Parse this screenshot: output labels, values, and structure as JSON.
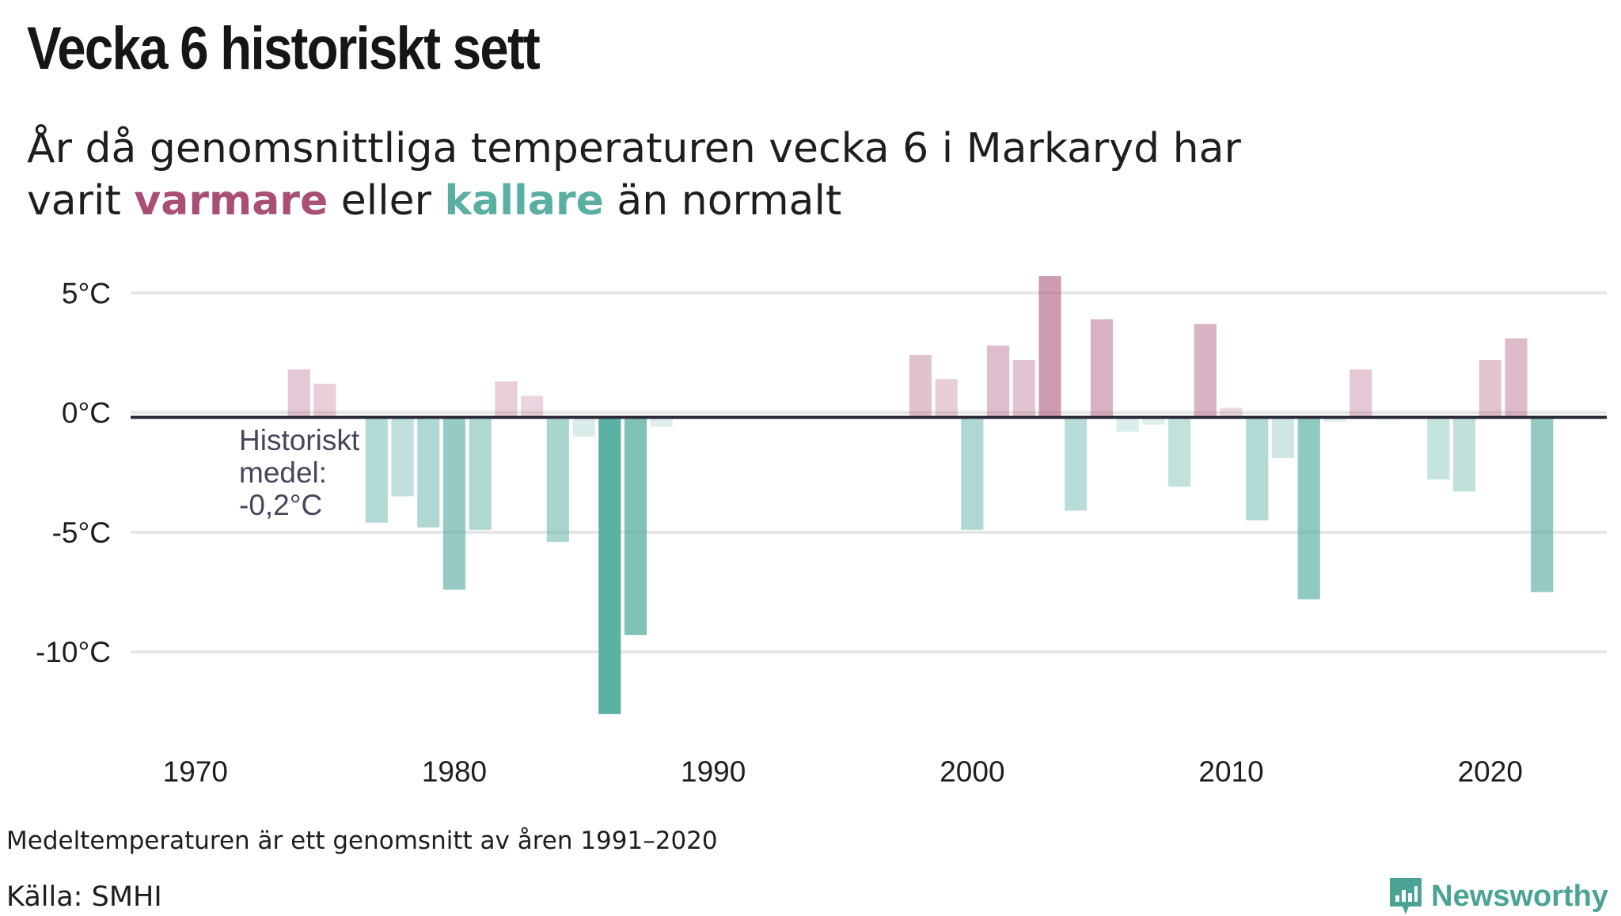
{
  "title": "Vecka 6 historiskt sett",
  "subtitle": {
    "line1": "År då genomsnittliga temperaturen vecka 6 i Markaryd har",
    "pre": "varit",
    "warm_word": "varmare",
    "mid": "eller",
    "cold_word": "kallare",
    "post": "än normalt"
  },
  "annotation": "Historiskt\nmedel:\n-0,2°C",
  "footnote": "Medeltemperaturen är ett genomsnitt av åren 1991–2020",
  "source": "Källa: SMHI",
  "logo": {
    "text": "Newsworthy",
    "icon": "newsworthy-chart-icon"
  },
  "colors": {
    "warm": "#a94f76",
    "cold": "#5aaea2",
    "baseline": "#2b2b3a",
    "grid": "#e6e6e6"
  },
  "chart_data": {
    "type": "bar",
    "baseline": -0.2,
    "ylim": [
      -13.5,
      6
    ],
    "xlim": [
      1967.5,
      2024.5
    ],
    "yticks": [
      5,
      0,
      -5,
      -10
    ],
    "ytick_labels": [
      "5°C",
      "0°C",
      "-5°C",
      "-10°C"
    ],
    "xticks": [
      1970,
      1980,
      1990,
      2000,
      2010,
      2020
    ],
    "xtick_labels": [
      "1970",
      "1980",
      "1990",
      "2000",
      "2010",
      "2020"
    ],
    "grid": true,
    "x": [
      1974,
      1975,
      1977,
      1978,
      1979,
      1980,
      1981,
      1982,
      1983,
      1984,
      1985,
      1986,
      1987,
      1988,
      1998,
      1999,
      2000,
      2001,
      2002,
      2003,
      2004,
      2005,
      2006,
      2007,
      2008,
      2009,
      2010,
      2011,
      2012,
      2013,
      2014,
      2015,
      2016,
      2018,
      2019,
      2020,
      2021,
      2022
    ],
    "values": [
      1.8,
      1.2,
      -4.6,
      -3.5,
      -4.8,
      -7.4,
      -4.9,
      1.3,
      0.7,
      -5.4,
      -1.0,
      -12.6,
      -9.3,
      -0.6,
      2.4,
      1.4,
      -4.9,
      2.8,
      2.2,
      5.7,
      -4.1,
      3.9,
      -0.8,
      -0.5,
      -3.1,
      3.7,
      0.2,
      -4.5,
      -1.9,
      -7.8,
      -0.4,
      1.8,
      -0.3,
      -2.8,
      -3.3,
      2.2,
      3.1,
      -7.5
    ]
  }
}
